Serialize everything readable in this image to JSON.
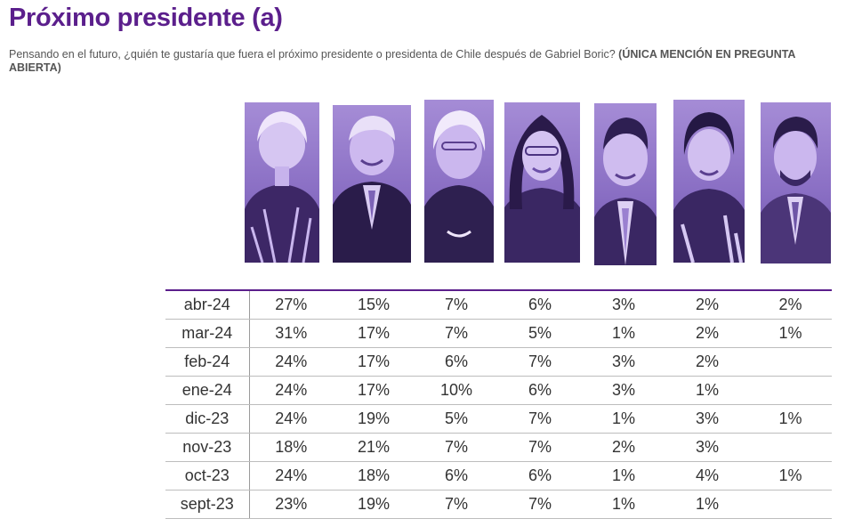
{
  "title": "Próximo presidente (a)",
  "subtitle": {
    "text": "Pensando en el futuro, ¿quién te gustaría que fuera el próximo presidente o presidenta de Chile después de Gabriel Boric? ",
    "emphasis": "(ÚNICA MENCIÓN EN PREGUNTA ABIERTA)"
  },
  "colors": {
    "title": "#5b1f8c",
    "photo_tint": "#8a6fc4",
    "table_top_rule": "#5b1f8c"
  },
  "chart_data": {
    "type": "table",
    "columns": 7,
    "rows": [
      {
        "label": "abr-24",
        "values": [
          "27%",
          "15%",
          "7%",
          "6%",
          "3%",
          "2%",
          "2%"
        ]
      },
      {
        "label": "mar-24",
        "values": [
          "31%",
          "17%",
          "7%",
          "5%",
          "1%",
          "2%",
          "1%"
        ]
      },
      {
        "label": "feb-24",
        "values": [
          "24%",
          "17%",
          "6%",
          "7%",
          "3%",
          "2%",
          ""
        ]
      },
      {
        "label": "ene-24",
        "values": [
          "24%",
          "17%",
          "10%",
          "6%",
          "3%",
          "1%",
          ""
        ]
      },
      {
        "label": "dic-23",
        "values": [
          "24%",
          "19%",
          "5%",
          "7%",
          "1%",
          "3%",
          "1%"
        ]
      },
      {
        "label": "nov-23",
        "values": [
          "18%",
          "21%",
          "7%",
          "7%",
          "2%",
          "3%",
          ""
        ]
      },
      {
        "label": "oct-23",
        "values": [
          "24%",
          "18%",
          "6%",
          "6%",
          "1%",
          "4%",
          "1%"
        ]
      },
      {
        "label": "sept-23",
        "values": [
          "23%",
          "19%",
          "7%",
          "7%",
          "1%",
          "1%",
          ""
        ]
      }
    ]
  }
}
